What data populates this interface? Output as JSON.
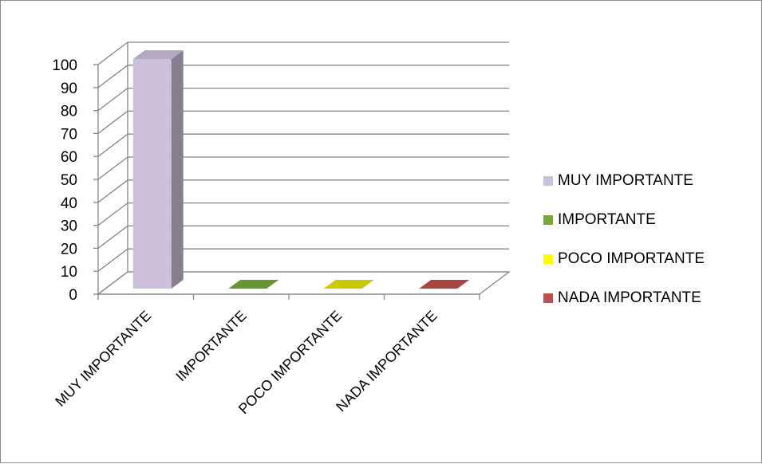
{
  "chart_data": {
    "type": "bar",
    "categories": [
      "MUY IMPORTANTE",
      "IMPORTANTE",
      "POCO IMPORTANTE",
      "NADA IMPORTANTE"
    ],
    "values": [
      100,
      0,
      0,
      0
    ],
    "colors": [
      "#ccc0da",
      "#77a83a",
      "#e6e600",
      "#c0504d"
    ],
    "yticks": [
      "0",
      "10",
      "20",
      "30",
      "40",
      "50",
      "60",
      "70",
      "80",
      "90",
      "100"
    ],
    "ylim": [
      0,
      100
    ],
    "grid": true,
    "legend_position": "right",
    "style": "3d-column"
  },
  "legend": {
    "items": [
      {
        "label": "MUY IMPORTANTE",
        "color": "#ccc0da"
      },
      {
        "label": "IMPORTANTE",
        "color": "#77a83a"
      },
      {
        "label": "POCO IMPORTANTE",
        "color": "#ffff00"
      },
      {
        "label": "NADA IMPORTANTE",
        "color": "#c0504d"
      }
    ]
  }
}
